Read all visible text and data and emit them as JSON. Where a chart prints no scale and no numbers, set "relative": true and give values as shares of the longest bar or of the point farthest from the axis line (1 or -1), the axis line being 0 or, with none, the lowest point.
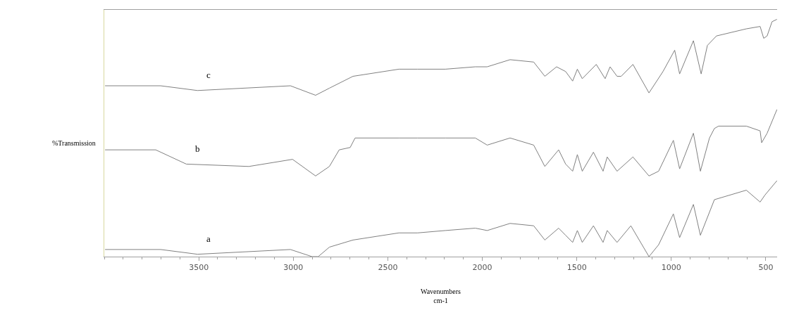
{
  "chart_data": {
    "type": "line",
    "relative": true,
    "xlabel": "Wavenumbers\ncm-1",
    "ylabel": "%Transmission",
    "xlim": [
      4000,
      440
    ],
    "xticks": [
      3500,
      3000,
      2500,
      2000,
      1500,
      1000,
      500
    ],
    "legend": false,
    "marker": "none",
    "line_style": "solid",
    "series": [
      {
        "name": "c",
        "color": "#808080",
        "x": [
          3996,
          3702,
          3507,
          3015,
          2882,
          2809,
          2684,
          2441,
          2342,
          2195,
          2037,
          1974,
          1853,
          1728,
          1669,
          1607,
          1559,
          1522,
          1497,
          1471,
          1397,
          1350,
          1324,
          1287,
          1265,
          1203,
          1118,
          1044,
          982,
          956,
          883,
          842,
          809,
          761,
          603,
          530,
          511,
          493,
          467,
          441
        ],
        "values": [
          0.72,
          0.72,
          0.7,
          0.72,
          0.68,
          0.71,
          0.76,
          0.79,
          0.79,
          0.79,
          0.8,
          0.8,
          0.83,
          0.82,
          0.76,
          0.8,
          0.78,
          0.74,
          0.79,
          0.75,
          0.81,
          0.75,
          0.8,
          0.76,
          0.76,
          0.81,
          0.69,
          0.78,
          0.87,
          0.77,
          0.91,
          0.77,
          0.89,
          0.93,
          0.96,
          0.97,
          0.92,
          0.93,
          0.99,
          1.0
        ]
      },
      {
        "name": "b",
        "color": "#808080",
        "x": [
          3996,
          3728,
          3566,
          3235,
          3004,
          2882,
          2809,
          2757,
          2699,
          2673,
          2441,
          2342,
          2195,
          2037,
          1974,
          1853,
          1728,
          1669,
          1596,
          1559,
          1522,
          1497,
          1471,
          1412,
          1361,
          1339,
          1287,
          1203,
          1118,
          1067,
          989,
          956,
          883,
          846,
          798,
          772,
          750,
          603,
          530,
          522,
          493,
          441
        ],
        "values": [
          0.45,
          0.45,
          0.39,
          0.38,
          0.41,
          0.34,
          0.38,
          0.45,
          0.46,
          0.5,
          0.5,
          0.5,
          0.5,
          0.5,
          0.47,
          0.5,
          0.47,
          0.38,
          0.45,
          0.39,
          0.36,
          0.43,
          0.36,
          0.44,
          0.36,
          0.42,
          0.36,
          0.42,
          0.34,
          0.36,
          0.49,
          0.37,
          0.52,
          0.36,
          0.5,
          0.54,
          0.55,
          0.55,
          0.53,
          0.48,
          0.52,
          0.62
        ]
      },
      {
        "name": "a",
        "color": "#808080",
        "x": [
          3996,
          3702,
          3507,
          3015,
          2901,
          2868,
          2809,
          2684,
          2441,
          2342,
          2195,
          2037,
          1974,
          1853,
          1728,
          1669,
          1596,
          1559,
          1522,
          1497,
          1471,
          1412,
          1361,
          1339,
          1287,
          1214,
          1118,
          1067,
          989,
          956,
          883,
          846,
          772,
          603,
          530,
          504,
          441
        ],
        "values": [
          0.03,
          0.03,
          0.01,
          0.03,
          0.0,
          0.0,
          0.04,
          0.07,
          0.1,
          0.1,
          0.11,
          0.12,
          0.11,
          0.14,
          0.13,
          0.07,
          0.12,
          0.09,
          0.06,
          0.11,
          0.06,
          0.13,
          0.06,
          0.11,
          0.06,
          0.13,
          0.0,
          0.05,
          0.18,
          0.08,
          0.22,
          0.09,
          0.24,
          0.28,
          0.23,
          0.26,
          0.32
        ]
      }
    ]
  }
}
